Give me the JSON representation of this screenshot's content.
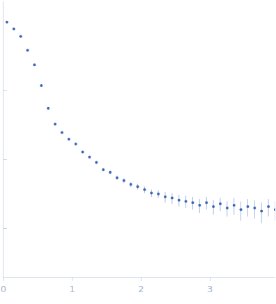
{
  "chart_data": {
    "type": "scatter",
    "log": "y",
    "grid": false,
    "tick_labels": "x",
    "marker": "circle",
    "color": "#3a66b8",
    "xlim": [
      0,
      3.95
    ],
    "xticks": [
      0,
      1,
      2,
      3
    ],
    "ylim": [
      0.0002,
      2
    ],
    "yticks": [
      0.001,
      0.01,
      0.1
    ],
    "x": [
      0.05,
      0.15,
      0.25,
      0.35,
      0.45,
      0.55,
      0.65,
      0.75,
      0.85,
      0.95,
      1.05,
      1.15,
      1.25,
      1.35,
      1.45,
      1.55,
      1.65,
      1.75,
      1.85,
      1.95,
      2.05,
      2.15,
      2.25,
      2.35,
      2.45,
      2.55,
      2.65,
      2.75,
      2.85,
      2.95,
      3.05,
      3.15,
      3.25,
      3.35,
      3.45,
      3.55,
      3.65,
      3.75,
      3.85,
      3.95
    ],
    "values": [
      1.0,
      0.8,
      0.62,
      0.39,
      0.24,
      0.12,
      0.056,
      0.033,
      0.025,
      0.02,
      0.017,
      0.013,
      0.011,
      0.0092,
      0.0072,
      0.0066,
      0.0055,
      0.005,
      0.0044,
      0.0041,
      0.0037,
      0.0033,
      0.0032,
      0.0029,
      0.0028,
      0.0026,
      0.0025,
      0.0024,
      0.0022,
      0.0024,
      0.0021,
      0.0023,
      0.002,
      0.0022,
      0.0019,
      0.0021,
      0.002,
      0.0018,
      0.0021,
      0.0019
    ],
    "error": [
      0.03,
      0.02,
      0.015,
      0.008,
      0.005,
      0.002,
      0.001,
      0.0008,
      0.0007,
      0.0006,
      0.0006,
      0.0005,
      0.0005,
      0.0005,
      0.0004,
      0.0004,
      0.0004,
      0.0004,
      0.0004,
      0.0004,
      0.0004,
      0.0004,
      0.0004,
      0.0005,
      0.0005,
      0.0005,
      0.0005,
      0.0005,
      0.0005,
      0.0005,
      0.0005,
      0.0005,
      0.0005,
      0.0006,
      0.0006,
      0.0006,
      0.0006,
      0.0006,
      0.0006,
      0.0006
    ]
  }
}
